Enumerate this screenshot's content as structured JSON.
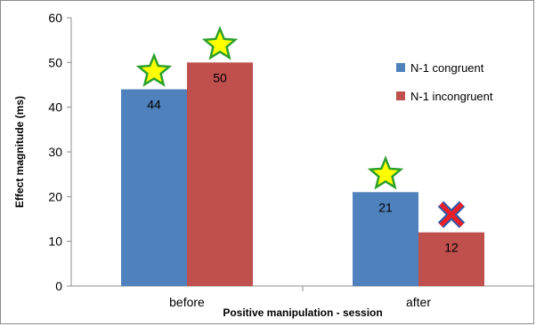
{
  "chart_data": {
    "type": "bar",
    "title": "",
    "xlabel": "Positive manipulation - session",
    "ylabel": "Effect magnitude (ms)",
    "categories": [
      "before",
      "after"
    ],
    "series": [
      {
        "name": "N-1 congruent",
        "values": [
          44,
          21
        ],
        "data_labels": [
          "44",
          "21"
        ],
        "color": "#4f81bd"
      },
      {
        "name": "N-1 incongruent",
        "values": [
          50,
          12
        ],
        "data_labels": [
          "50",
          "12"
        ],
        "color": "#c0504d"
      }
    ],
    "ylim": [
      0,
      60
    ],
    "yticks": [
      "0",
      "10",
      "20",
      "30",
      "40",
      "50",
      "60"
    ],
    "grid": false,
    "legend_position": "right",
    "annotations": [
      {
        "type": "star-icon",
        "category": "before",
        "series": "N-1 congruent",
        "color": "#ffff00",
        "stroke": "#2ca02c"
      },
      {
        "type": "star-icon",
        "category": "before",
        "series": "N-1 incongruent",
        "color": "#ffff00",
        "stroke": "#2ca02c"
      },
      {
        "type": "star-icon",
        "category": "after",
        "series": "N-1 congruent",
        "color": "#ffff00",
        "stroke": "#2ca02c"
      },
      {
        "type": "cross-icon",
        "category": "after",
        "series": "N-1 incongruent",
        "color": "#e8202a",
        "stroke": "#2e5aa8"
      }
    ]
  }
}
